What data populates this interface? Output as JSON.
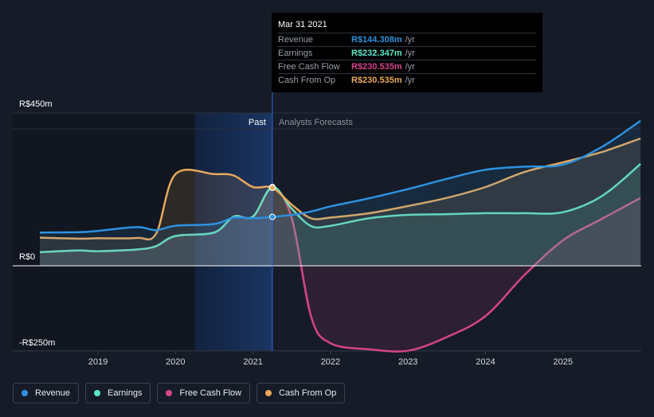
{
  "chart_data": {
    "type": "area",
    "currency_unit": "R$ millions per year",
    "yticks": [
      {
        "value": 450,
        "label": "R$450m"
      },
      {
        "value": 0,
        "label": "R$0"
      },
      {
        "value": -250,
        "label": "-R$250m"
      }
    ],
    "ylim": [
      -250,
      450
    ],
    "xlim": [
      2018.25,
      2026.0
    ],
    "xticks": [
      {
        "value": 2019,
        "label": "2019"
      },
      {
        "value": 2020,
        "label": "2020"
      },
      {
        "value": 2021,
        "label": "2021"
      },
      {
        "value": 2022,
        "label": "2022"
      },
      {
        "value": 2023,
        "label": "2023"
      },
      {
        "value": 2024,
        "label": "2024"
      },
      {
        "value": 2025,
        "label": "2025"
      }
    ],
    "past_label": "Past",
    "forecast_label": "Analysts Forecasts",
    "highlight_range": [
      2020.25,
      2021.25
    ],
    "divider_x": 2021.25,
    "series": [
      {
        "name": "Revenue",
        "color": "#2e91e0",
        "points": [
          [
            2018.25,
            98
          ],
          [
            2018.75,
            99
          ],
          [
            2019.0,
            103
          ],
          [
            2019.5,
            114
          ],
          [
            2019.75,
            105
          ],
          [
            2020.0,
            118
          ],
          [
            2020.5,
            123
          ],
          [
            2020.75,
            142
          ],
          [
            2021.0,
            140
          ],
          [
            2021.25,
            144
          ],
          [
            2021.5,
            150
          ],
          [
            2021.75,
            160
          ],
          [
            2022.0,
            175
          ],
          [
            2022.5,
            199
          ],
          [
            2023.0,
            226
          ],
          [
            2023.5,
            256
          ],
          [
            2024.0,
            283
          ],
          [
            2024.5,
            292
          ],
          [
            2025.0,
            298
          ],
          [
            2025.5,
            350
          ],
          [
            2026.0,
            427
          ]
        ]
      },
      {
        "name": "Earnings",
        "color": "#58e8c8",
        "points": [
          [
            2018.25,
            40
          ],
          [
            2018.75,
            45
          ],
          [
            2019.0,
            43
          ],
          [
            2019.5,
            48
          ],
          [
            2019.75,
            58
          ],
          [
            2020.0,
            88
          ],
          [
            2020.5,
            98
          ],
          [
            2020.75,
            145
          ],
          [
            2021.0,
            145
          ],
          [
            2021.25,
            232
          ],
          [
            2021.5,
            168
          ],
          [
            2021.75,
            117
          ],
          [
            2022.0,
            118
          ],
          [
            2022.5,
            140
          ],
          [
            2023.0,
            150
          ],
          [
            2023.5,
            152
          ],
          [
            2024.0,
            155
          ],
          [
            2024.5,
            155
          ],
          [
            2025.0,
            158
          ],
          [
            2025.5,
            205
          ],
          [
            2026.0,
            300
          ]
        ]
      },
      {
        "name": "Free Cash Flow",
        "color": "#d5448a",
        "points": [
          [
            2018.25,
            40
          ],
          [
            2018.75,
            45
          ],
          [
            2019.0,
            43
          ],
          [
            2019.5,
            48
          ],
          [
            2019.75,
            58
          ],
          [
            2020.0,
            88
          ],
          [
            2020.5,
            98
          ],
          [
            2020.75,
            145
          ],
          [
            2021.0,
            145
          ],
          [
            2021.25,
            230
          ],
          [
            2021.5,
            140
          ],
          [
            2021.75,
            -150
          ],
          [
            2022.0,
            -228
          ],
          [
            2022.5,
            -246
          ],
          [
            2023.0,
            -250
          ],
          [
            2023.5,
            -210
          ],
          [
            2024.0,
            -148
          ],
          [
            2024.5,
            -28
          ],
          [
            2025.0,
            75
          ],
          [
            2025.5,
            138
          ],
          [
            2026.0,
            200
          ]
        ]
      },
      {
        "name": "Cash From Op",
        "color": "#e9a95b",
        "points": [
          [
            2018.25,
            83
          ],
          [
            2018.75,
            80
          ],
          [
            2019.0,
            81
          ],
          [
            2019.5,
            82
          ],
          [
            2019.75,
            95
          ],
          [
            2020.0,
            270
          ],
          [
            2020.5,
            270
          ],
          [
            2020.75,
            266
          ],
          [
            2021.0,
            232
          ],
          [
            2021.25,
            230
          ],
          [
            2021.5,
            180
          ],
          [
            2021.75,
            140
          ],
          [
            2022.0,
            142
          ],
          [
            2022.5,
            155
          ],
          [
            2023.0,
            176
          ],
          [
            2023.5,
            200
          ],
          [
            2024.0,
            232
          ],
          [
            2024.5,
            276
          ],
          [
            2025.0,
            305
          ],
          [
            2025.5,
            335
          ],
          [
            2026.0,
            375
          ]
        ]
      }
    ]
  },
  "tooltip": {
    "date": "Mar 31 2021",
    "rows": [
      {
        "name": "Revenue",
        "value": "R$144.308m",
        "unit": "/yr",
        "color": "#2e91e0"
      },
      {
        "name": "Earnings",
        "value": "R$232.347m",
        "unit": "/yr",
        "color": "#58e8c8"
      },
      {
        "name": "Free Cash Flow",
        "value": "R$230.535m",
        "unit": "/yr",
        "color": "#d5448a"
      },
      {
        "name": "Cash From Op",
        "value": "R$230.535m",
        "unit": "/yr",
        "color": "#e9a95b"
      }
    ]
  },
  "legend": [
    {
      "label": "Revenue",
      "color": "#2e91e0"
    },
    {
      "label": "Earnings",
      "color": "#58e8c8"
    },
    {
      "label": "Free Cash Flow",
      "color": "#d5448a"
    },
    {
      "label": "Cash From Op",
      "color": "#e9a95b"
    }
  ]
}
